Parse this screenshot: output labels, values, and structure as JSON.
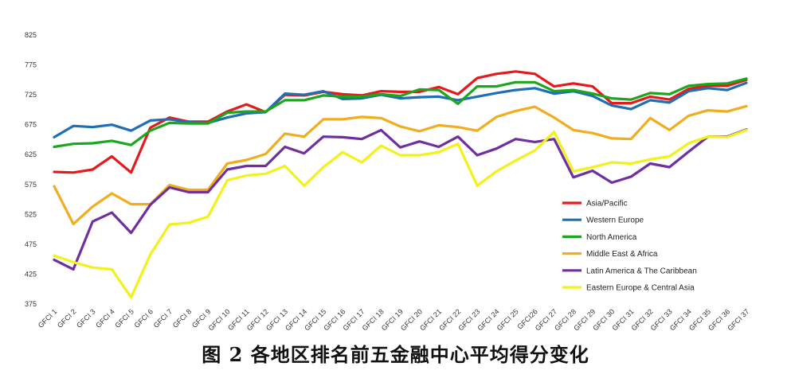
{
  "caption": "图 2  各地区排名前五金融中心平均得分变化",
  "chart_data": {
    "type": "line",
    "categories": [
      "GFCI 1",
      "GFCI 2",
      "GFCI 3",
      "GFCI 4",
      "GFCI 5",
      "GFCI 6",
      "GFCI 7",
      "GFCI 8",
      "GFCI 9",
      "GFCI 10",
      "GFCI 11",
      "GFCI 12",
      "GFCI 13",
      "GFCI 14",
      "GFCI 15",
      "GFCI 16",
      "GFCI 17",
      "GFCI 18",
      "GFCI 19",
      "GFCI 20",
      "GFCI 21",
      "GFCI 22",
      "GFCI 23",
      "GFCI 24",
      "GFCI 25",
      "GFCI26",
      "GFCI 27",
      "GFCI 28",
      "GFCI 29",
      "GFCI 30",
      "GFCI 31",
      "GFCI 32",
      "GFCI 33",
      "GFCI 34",
      "GFCI 35",
      "GFCI 36",
      "GFCI 37"
    ],
    "yticks": [
      "375",
      "425",
      "475",
      "525",
      "575",
      "625",
      "675",
      "725",
      "775",
      "825"
    ],
    "ylim": [
      375,
      825
    ],
    "grid": false,
    "legend_position": "right",
    "series": [
      {
        "name": "Asia/Pacific",
        "color": "#e41a1c",
        "values": [
          596,
          595,
          600,
          622,
          595,
          670,
          687,
          680,
          680,
          697,
          709,
          696,
          725,
          724,
          730,
          726,
          724,
          731,
          730,
          730,
          738,
          726,
          753,
          760,
          764,
          760,
          739,
          744,
          739,
          711,
          711,
          722,
          717,
          735,
          740,
          740,
          750
        ]
      },
      {
        "name": "Western Europe",
        "color": "#1f6fb2",
        "values": [
          654,
          673,
          671,
          675,
          665,
          682,
          684,
          679,
          678,
          687,
          694,
          696,
          727,
          725,
          731,
          718,
          719,
          725,
          719,
          721,
          722,
          716,
          722,
          728,
          733,
          736,
          727,
          731,
          723,
          707,
          701,
          716,
          712,
          731,
          736,
          733,
          745
        ]
      },
      {
        "name": "North America",
        "color": "#1ea51e",
        "values": [
          638,
          643,
          644,
          648,
          641,
          665,
          678,
          677,
          677,
          695,
          697,
          697,
          716,
          716,
          724,
          722,
          722,
          726,
          723,
          734,
          733,
          710,
          739,
          739,
          746,
          746,
          731,
          733,
          727,
          719,
          717,
          728,
          726,
          740,
          743,
          744,
          752
        ]
      },
      {
        "name": "Middle East & Africa",
        "color": "#f0ad1e",
        "values": [
          572,
          509,
          538,
          560,
          542,
          542,
          574,
          566,
          566,
          610,
          616,
          626,
          660,
          655,
          684,
          684,
          688,
          686,
          672,
          664,
          674,
          671,
          665,
          688,
          698,
          705,
          687,
          666,
          661,
          652,
          651,
          686,
          666,
          690,
          699,
          697,
          706
        ]
      },
      {
        "name": "Latin America & The Caribbean",
        "color": "#6f2f9f",
        "values": [
          449,
          433,
          513,
          528,
          494,
          541,
          570,
          562,
          562,
          600,
          606,
          606,
          638,
          627,
          655,
          654,
          651,
          666,
          637,
          647,
          638,
          655,
          624,
          635,
          651,
          646,
          651,
          587,
          598,
          578,
          588,
          610,
          604,
          630,
          655,
          655,
          667
        ]
      },
      {
        "name": "Eastern Europe & Central Asia",
        "color": "#f2f21a",
        "values": [
          456,
          445,
          436,
          433,
          386,
          458,
          508,
          511,
          521,
          582,
          590,
          593,
          606,
          573,
          604,
          629,
          612,
          640,
          624,
          624,
          629,
          643,
          573,
          597,
          615,
          632,
          663,
          597,
          604,
          612,
          610,
          617,
          622,
          644,
          655,
          654,
          666
        ]
      }
    ]
  }
}
